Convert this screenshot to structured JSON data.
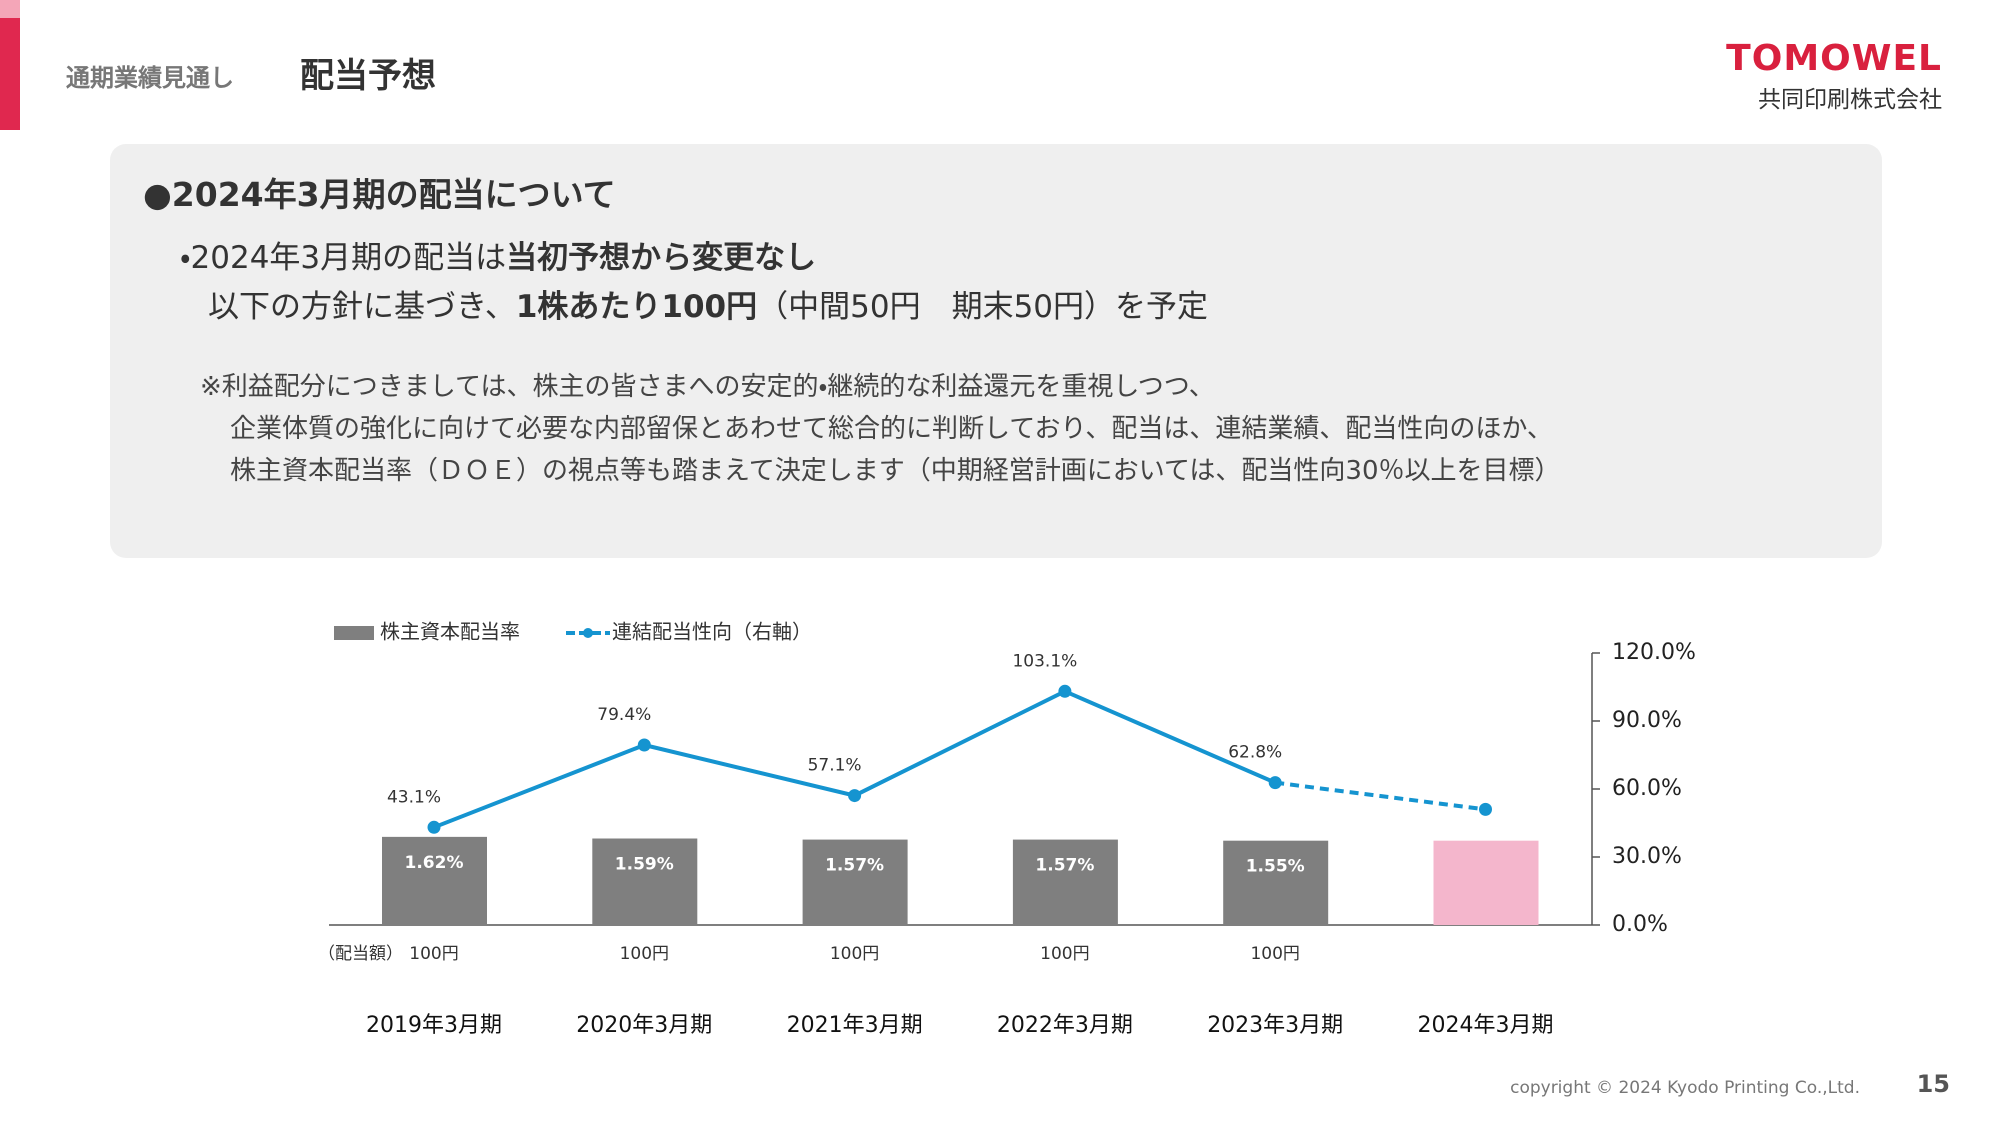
{
  "header": {
    "section": "通期業績見通し",
    "title": "配当予想"
  },
  "logo": {
    "brand": "TOMOWEL",
    "company": "共同印刷株式会社"
  },
  "notice": {
    "heading": "●2024年3月期の配当について",
    "lines": [
      [
        {
          "text": "・2024年3月期の配当は"
        },
        {
          "text": "当初予想から変更なし",
          "bold": true
        }
      ],
      [
        {
          "text": "以下の方針に基づき、"
        },
        {
          "text": "1株あたり100円",
          "bold": true
        },
        {
          "text": "（中間50円　期末50円）を予定"
        }
      ]
    ],
    "note": [
      "※利益配分につきましては、株主の皆さまへの安定的・継続的な利益還元を重視しつつ、",
      "企業体質の強化に向けて必要な内部留保とあわせて総合的に判断しており、配当は、連結業績、配当性向のほか、",
      "株主資本配当率（ＤＯＥ）の視点等も踏まえて決定します（中期経営計画においては、配当性向30％以上を目標）"
    ]
  },
  "chart_data": {
    "type": "bar",
    "categories": [
      "2019年3月期",
      "2020年3月期",
      "2021年3月期",
      "2022年3月期",
      "2023年3月期",
      "2024年3月期"
    ],
    "series": [
      {
        "name": "株主資本配当率",
        "type": "bar",
        "color": "#7f7f7f",
        "colors": [
          "#7f7f7f",
          "#7f7f7f",
          "#7f7f7f",
          "#7f7f7f",
          "#7f7f7f",
          "#f4b6cc"
        ],
        "values": [
          1.62,
          1.59,
          1.57,
          1.57,
          1.55,
          1.55
        ],
        "value_labels": [
          "1.62%",
          "1.59%",
          "1.57%",
          "1.57%",
          "1.55%",
          null
        ]
      },
      {
        "name": "連結配当性向（右軸）",
        "type": "line",
        "axis": "y2",
        "color": "#1594d0",
        "values": [
          43.1,
          79.4,
          57.1,
          103.1,
          62.8,
          51
        ],
        "value_labels": [
          "43.1%",
          "79.4%",
          "57.1%",
          "103.1%",
          "62.8%",
          null
        ],
        "dashed_from": 4
      }
    ],
    "ylim": [
      0,
      5
    ],
    "y2lim": [
      0,
      120
    ],
    "y2ticks": [
      {
        "value": 0,
        "label": "0.0%"
      },
      {
        "value": 30,
        "label": "30.0%"
      },
      {
        "value": 60,
        "label": "60.0%"
      },
      {
        "value": 90,
        "label": "90.0%"
      },
      {
        "value": 120,
        "label": "120.0%"
      }
    ],
    "dividend_label": "（配当額）",
    "dividend_amounts": [
      "100円",
      "100円",
      "100円",
      "100円",
      "100円",
      null
    ]
  },
  "footer": {
    "copyright": "copyright © 2024 Kyodo Printing Co.,Ltd.",
    "page": "15"
  }
}
